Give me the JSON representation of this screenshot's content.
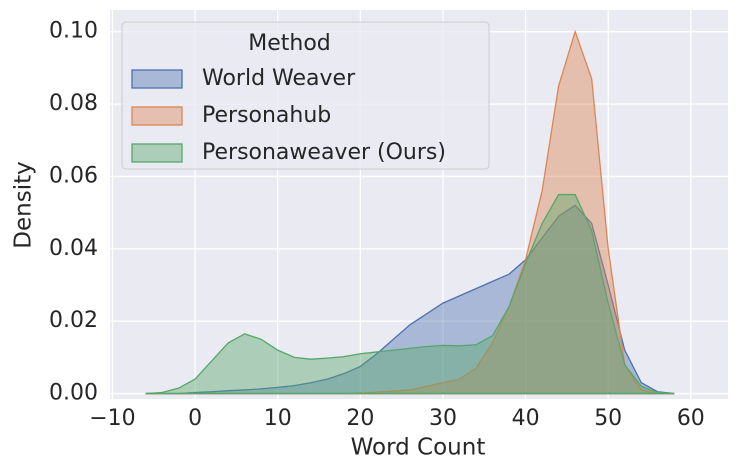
{
  "chart_data": {
    "type": "area",
    "xlabel": "Word Count",
    "ylabel": "Density",
    "legend_title": "Method",
    "legend": "upper left",
    "grid": true,
    "x": [
      -6,
      -4,
      -2,
      0,
      2,
      4,
      6,
      8,
      10,
      12,
      14,
      16,
      18,
      20,
      22,
      24,
      26,
      28,
      30,
      32,
      34,
      36,
      38,
      40,
      42,
      44,
      46,
      48,
      50,
      52,
      54,
      56,
      58
    ],
    "series": [
      {
        "name": "World Weaver",
        "color": "#4c72b0",
        "values": [
          0,
          0,
          0,
          0.0003,
          0.0005,
          0.0008,
          0.001,
          0.0013,
          0.0017,
          0.0022,
          0.003,
          0.004,
          0.0055,
          0.0075,
          0.011,
          0.015,
          0.019,
          0.022,
          0.025,
          0.027,
          0.029,
          0.031,
          0.033,
          0.037,
          0.043,
          0.049,
          0.052,
          0.047,
          0.03,
          0.012,
          0.003,
          0.0005,
          0
        ]
      },
      {
        "name": "Personahub",
        "color": "#dd8452",
        "values": [
          0,
          0,
          0,
          0,
          0,
          0,
          0,
          0,
          0,
          0,
          0,
          0,
          0,
          0.0002,
          0.0004,
          0.0007,
          0.001,
          0.002,
          0.003,
          0.004,
          0.007,
          0.014,
          0.024,
          0.037,
          0.056,
          0.085,
          0.1,
          0.087,
          0.04,
          0.008,
          0.001,
          0,
          0
        ]
      },
      {
        "name": "Personaweaver (Ours)",
        "color": "#55a868",
        "values": [
          0,
          0.0003,
          0.0015,
          0.004,
          0.009,
          0.014,
          0.0165,
          0.015,
          0.012,
          0.01,
          0.0095,
          0.0098,
          0.0102,
          0.011,
          0.0115,
          0.012,
          0.0125,
          0.013,
          0.0133,
          0.0132,
          0.0135,
          0.016,
          0.024,
          0.036,
          0.047,
          0.055,
          0.055,
          0.045,
          0.025,
          0.008,
          0.002,
          0.0003,
          0
        ]
      }
    ],
    "xlim": [
      -10.3,
      64.5
    ],
    "xticks": [
      {
        "value": -10,
        "label": "−10"
      },
      0,
      10,
      20,
      30,
      40,
      50,
      60
    ],
    "ylim": [
      -0.0015,
      0.106
    ],
    "yticks": [
      {
        "value": 0,
        "label": "0.00"
      },
      {
        "value": 0.02,
        "label": "0.02"
      },
      {
        "value": 0.04,
        "label": "0.04"
      },
      {
        "value": 0.06,
        "label": "0.06"
      },
      {
        "value": 0.08,
        "label": "0.08"
      },
      {
        "value": 0.1,
        "label": "0.10"
      }
    ]
  }
}
